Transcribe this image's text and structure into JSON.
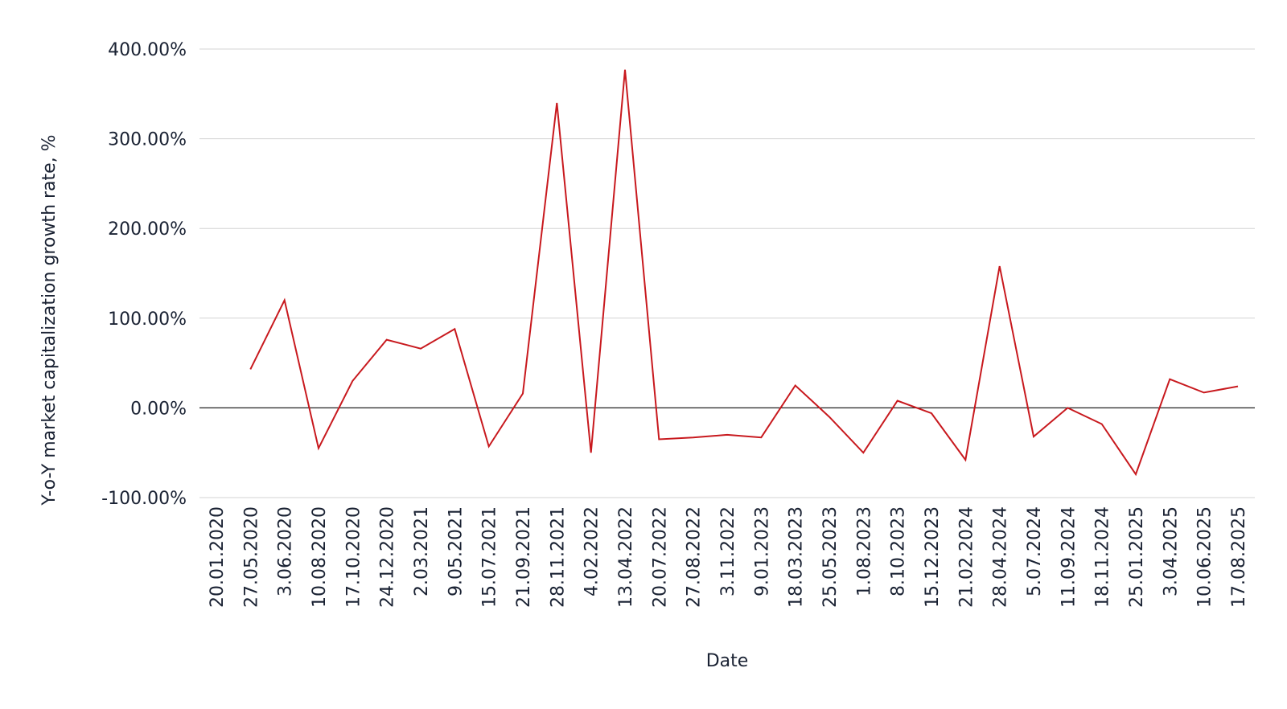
{
  "colors": {
    "series": "#c8191e",
    "grid": "#d3d3d3",
    "zero_line": "#222222",
    "text": "#1a2233"
  },
  "chart_data": {
    "type": "line",
    "title": "",
    "xlabel": "Date",
    "ylabel": "Y-o-Y market capitalization growth rate, %",
    "ylim": [
      -100,
      400
    ],
    "y_ticks": [
      {
        "value": 400,
        "label": "400.00%"
      },
      {
        "value": 300,
        "label": "300.00%"
      },
      {
        "value": 200,
        "label": "200.00%"
      },
      {
        "value": 100,
        "label": "100.00%"
      },
      {
        "value": 0,
        "label": "0.00%"
      },
      {
        "value": -100,
        "label": "-100.00%"
      }
    ],
    "grid": true,
    "legend": "none",
    "categories": [
      "20.01.2020",
      "27.05.2020",
      "3.06.2020",
      "10.08.2020",
      "17.10.2020",
      "24.12.2020",
      "2.03.2021",
      "9.05.2021",
      "15.07.2021",
      "21.09.2021",
      "28.11.2021",
      "4.02.2022",
      "13.04.2022",
      "20.07.2022",
      "27.08.2022",
      "3.11.2022",
      "9.01.2023",
      "18.03.2023",
      "25.05.2023",
      "1.08.2023",
      "8.10.2023",
      "15.12.2023",
      "21.02.2024",
      "28.04.2024",
      "5.07.2024",
      "11.09.2024",
      "18.11.2024",
      "25.01.2025",
      "3.04.2025",
      "10.06.2025",
      "17.08.2025"
    ],
    "series": [
      {
        "values": [
          null,
          43,
          120,
          -45,
          30,
          76,
          66,
          88,
          -43,
          16,
          340,
          -50,
          377,
          -35,
          -33,
          -30,
          -33,
          25,
          -10,
          -50,
          8,
          -6,
          -58,
          158,
          -32,
          0,
          -18,
          -74,
          32,
          17,
          24
        ]
      }
    ]
  }
}
